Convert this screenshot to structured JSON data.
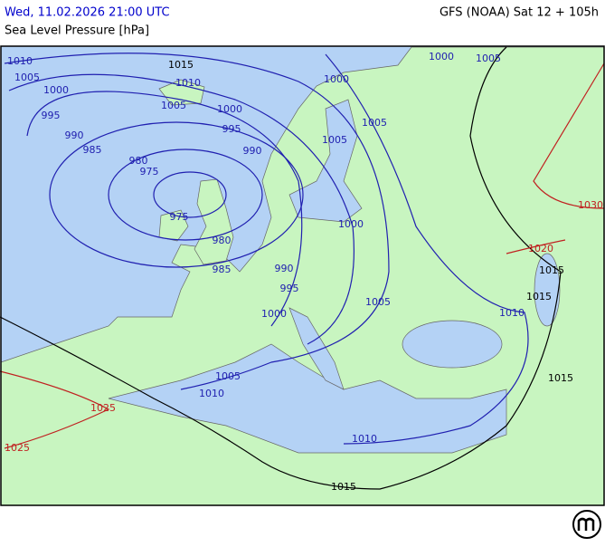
{
  "header": {
    "datetime": "Wed, 11.02.2026 21:00 UTC",
    "field": "Sea Level Pressure [hPa]",
    "model": "GFS (NOAA) Sat 12 + 105h"
  },
  "isobar_labels": [
    {
      "value": 1010,
      "color": "#2020b0"
    },
    {
      "value": 1005,
      "color": "#2020b0"
    },
    {
      "value": 1015,
      "color": "#000000"
    },
    {
      "value": 1010,
      "color": "#2020b0"
    },
    {
      "value": 1005,
      "color": "#2020b0"
    },
    {
      "value": 1000,
      "color": "#2020b0"
    },
    {
      "value": 1000,
      "color": "#2020b0"
    },
    {
      "value": 1005,
      "color": "#2020b0"
    },
    {
      "value": 1000,
      "color": "#2020b0"
    },
    {
      "value": 1000,
      "color": "#2020b0"
    },
    {
      "value": 995,
      "color": "#2020b0"
    },
    {
      "value": 995,
      "color": "#2020b0"
    },
    {
      "value": 1005,
      "color": "#2020b0"
    },
    {
      "value": 1005,
      "color": "#2020b0"
    },
    {
      "value": 990,
      "color": "#2020b0"
    },
    {
      "value": 990,
      "color": "#2020b0"
    },
    {
      "value": 985,
      "color": "#2020b0"
    },
    {
      "value": 980,
      "color": "#2020b0"
    },
    {
      "value": 975,
      "color": "#2020b0"
    },
    {
      "value": 975,
      "color": "#2020b0"
    },
    {
      "value": 980,
      "color": "#2020b0"
    },
    {
      "value": 985,
      "color": "#2020b0"
    },
    {
      "value": 1000,
      "color": "#2020b0"
    },
    {
      "value": 990,
      "color": "#2020b0"
    },
    {
      "value": 995,
      "color": "#2020b0"
    },
    {
      "value": 1005,
      "color": "#2020b0"
    },
    {
      "value": 1000,
      "color": "#2020b0"
    },
    {
      "value": 1005,
      "color": "#2020b0"
    },
    {
      "value": 1010,
      "color": "#2020b0"
    },
    {
      "value": 1010,
      "color": "#2020b0"
    },
    {
      "value": 1015,
      "color": "#000000"
    },
    {
      "value": 1015,
      "color": "#000000"
    },
    {
      "value": 1015,
      "color": "#000000"
    },
    {
      "value": 1020,
      "color": "#c02020"
    },
    {
      "value": 1030,
      "color": "#c02020"
    },
    {
      "value": 1025,
      "color": "#c02020"
    },
    {
      "value": 1025,
      "color": "#c02020"
    },
    {
      "value": 1010,
      "color": "#2020b0"
    },
    {
      "value": 1015,
      "color": "#000000"
    }
  ]
}
